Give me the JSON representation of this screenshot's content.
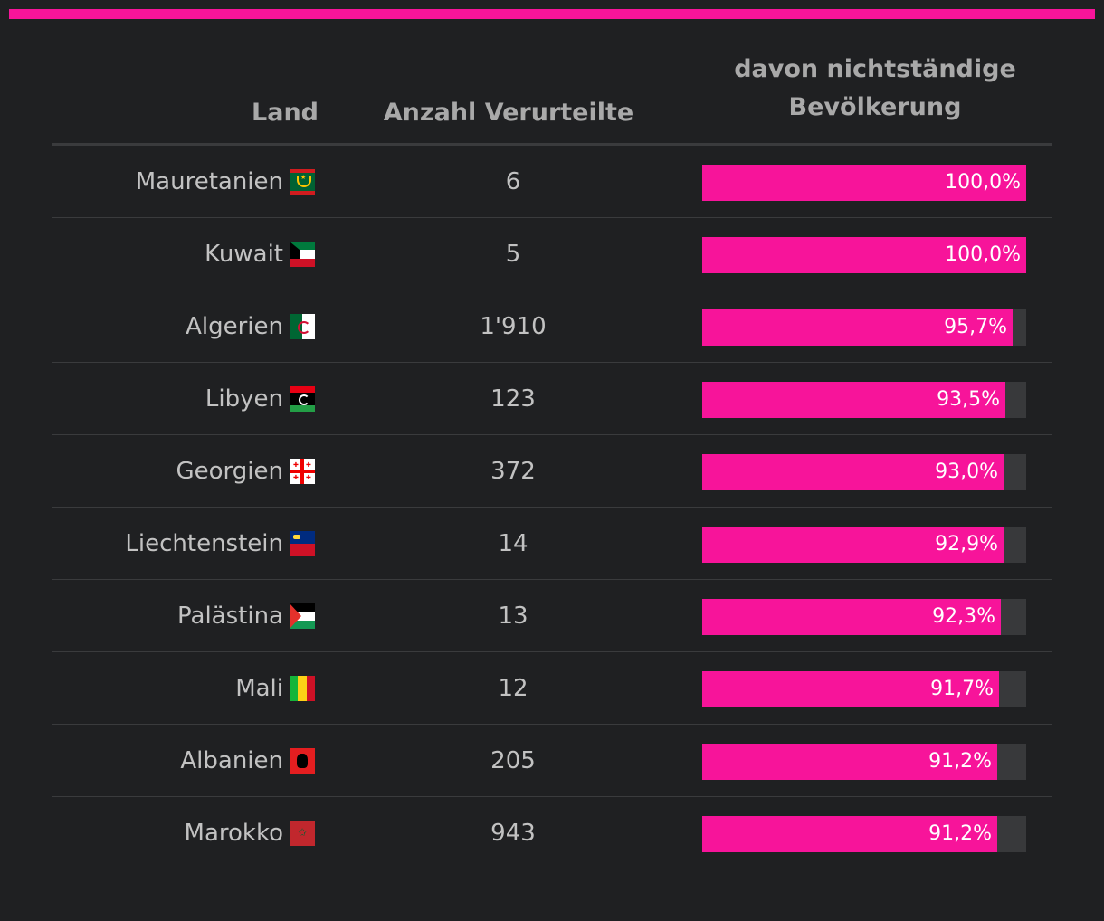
{
  "chart_data": {
    "type": "table",
    "columns": [
      "Land",
      "Anzahl Verurteilte",
      "davon nichtständige Bevölkerung"
    ],
    "header_share_line1": "davon nichtständige",
    "header_share_line2": "Bevölkerung",
    "rows": [
      {
        "land": "Mauretanien",
        "flag": "flag-mauritania-icon",
        "count": "6",
        "share": 100.0,
        "share_label": "100,0%"
      },
      {
        "land": "Kuwait",
        "flag": "flag-kuwait-icon",
        "count": "5",
        "share": 100.0,
        "share_label": "100,0%"
      },
      {
        "land": "Algerien",
        "flag": "flag-algeria-icon",
        "count": "1'910",
        "share": 95.7,
        "share_label": "95,7%"
      },
      {
        "land": "Libyen",
        "flag": "flag-libya-icon",
        "count": "123",
        "share": 93.5,
        "share_label": "93,5%"
      },
      {
        "land": "Georgien",
        "flag": "flag-georgia-icon",
        "count": "372",
        "share": 93.0,
        "share_label": "93,0%"
      },
      {
        "land": "Liechtenstein",
        "flag": "flag-liechtenstein-icon",
        "count": "14",
        "share": 92.9,
        "share_label": "92,9%"
      },
      {
        "land": "Palästina",
        "flag": "flag-palestine-icon",
        "count": "13",
        "share": 92.3,
        "share_label": "92,3%"
      },
      {
        "land": "Mali",
        "flag": "flag-mali-icon",
        "count": "12",
        "share": 91.7,
        "share_label": "91,7%"
      },
      {
        "land": "Albanien",
        "flag": "flag-albania-icon",
        "count": "205",
        "share": 91.2,
        "share_label": "91,2%"
      },
      {
        "land": "Marokko",
        "flag": "flag-morocco-icon",
        "count": "943",
        "share": 91.2,
        "share_label": "91,2%"
      }
    ],
    "share_max": 100
  },
  "colors": {
    "accent": "#f7149a",
    "background": "#1f2022",
    "bar_track": "#38393b"
  }
}
